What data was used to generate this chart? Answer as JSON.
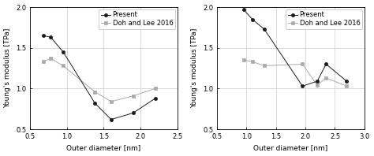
{
  "left": {
    "present_x": [
      0.68,
      0.78,
      0.95,
      1.38,
      1.6,
      1.9,
      2.2
    ],
    "present_y": [
      1.65,
      1.63,
      1.45,
      0.82,
      0.62,
      0.7,
      0.88
    ],
    "doh_x": [
      0.68,
      0.78,
      0.95,
      1.38,
      1.6,
      1.9,
      2.2
    ],
    "doh_y": [
      1.33,
      1.37,
      1.28,
      0.96,
      0.84,
      0.91,
      1.0
    ],
    "xlim": [
      0.5,
      2.5
    ],
    "ylim": [
      0.5,
      2.0
    ],
    "xlabel": "Outer diameter [nm]",
    "ylabel": "Young's modulus [TPa]",
    "xticks": [
      0.5,
      1.0,
      1.5,
      2.0,
      2.5
    ],
    "yticks": [
      0.5,
      1.0,
      1.5,
      2.0
    ]
  },
  "right": {
    "present_x": [
      0.95,
      1.1,
      1.3,
      1.95,
      2.2,
      2.35,
      2.7
    ],
    "present_y": [
      1.97,
      1.85,
      1.73,
      1.03,
      1.09,
      1.3,
      1.09
    ],
    "doh_x": [
      0.95,
      1.1,
      1.3,
      1.95,
      2.2,
      2.35,
      2.7
    ],
    "doh_y": [
      1.35,
      1.33,
      1.28,
      1.3,
      1.04,
      1.13,
      1.03
    ],
    "xlim": [
      0.5,
      3.0
    ],
    "ylim": [
      0.5,
      2.0
    ],
    "xlabel": "Outer diameter [nm]",
    "ylabel": "Young's modulus [TPa]",
    "xticks": [
      0.5,
      1.0,
      1.5,
      2.0,
      2.5,
      3.0
    ],
    "yticks": [
      0.5,
      1.0,
      1.5,
      2.0
    ]
  },
  "present_color": "#1a1a1a",
  "doh_color": "#aaaaaa",
  "present_marker": "o",
  "doh_marker": "s",
  "present_marker_fc": "#1a1a1a",
  "doh_marker_fc": "#aaaaaa",
  "present_marker_ec": "#1a1a1a",
  "doh_marker_ec": "#aaaaaa",
  "linewidth": 0.7,
  "markersize": 3.0,
  "legend_present": "Present",
  "legend_doh": "Doh and Lee 2016",
  "fontsize": 6.5,
  "tick_fontsize": 6.0,
  "grid_color": "#cccccc",
  "grid_lw": 0.5
}
